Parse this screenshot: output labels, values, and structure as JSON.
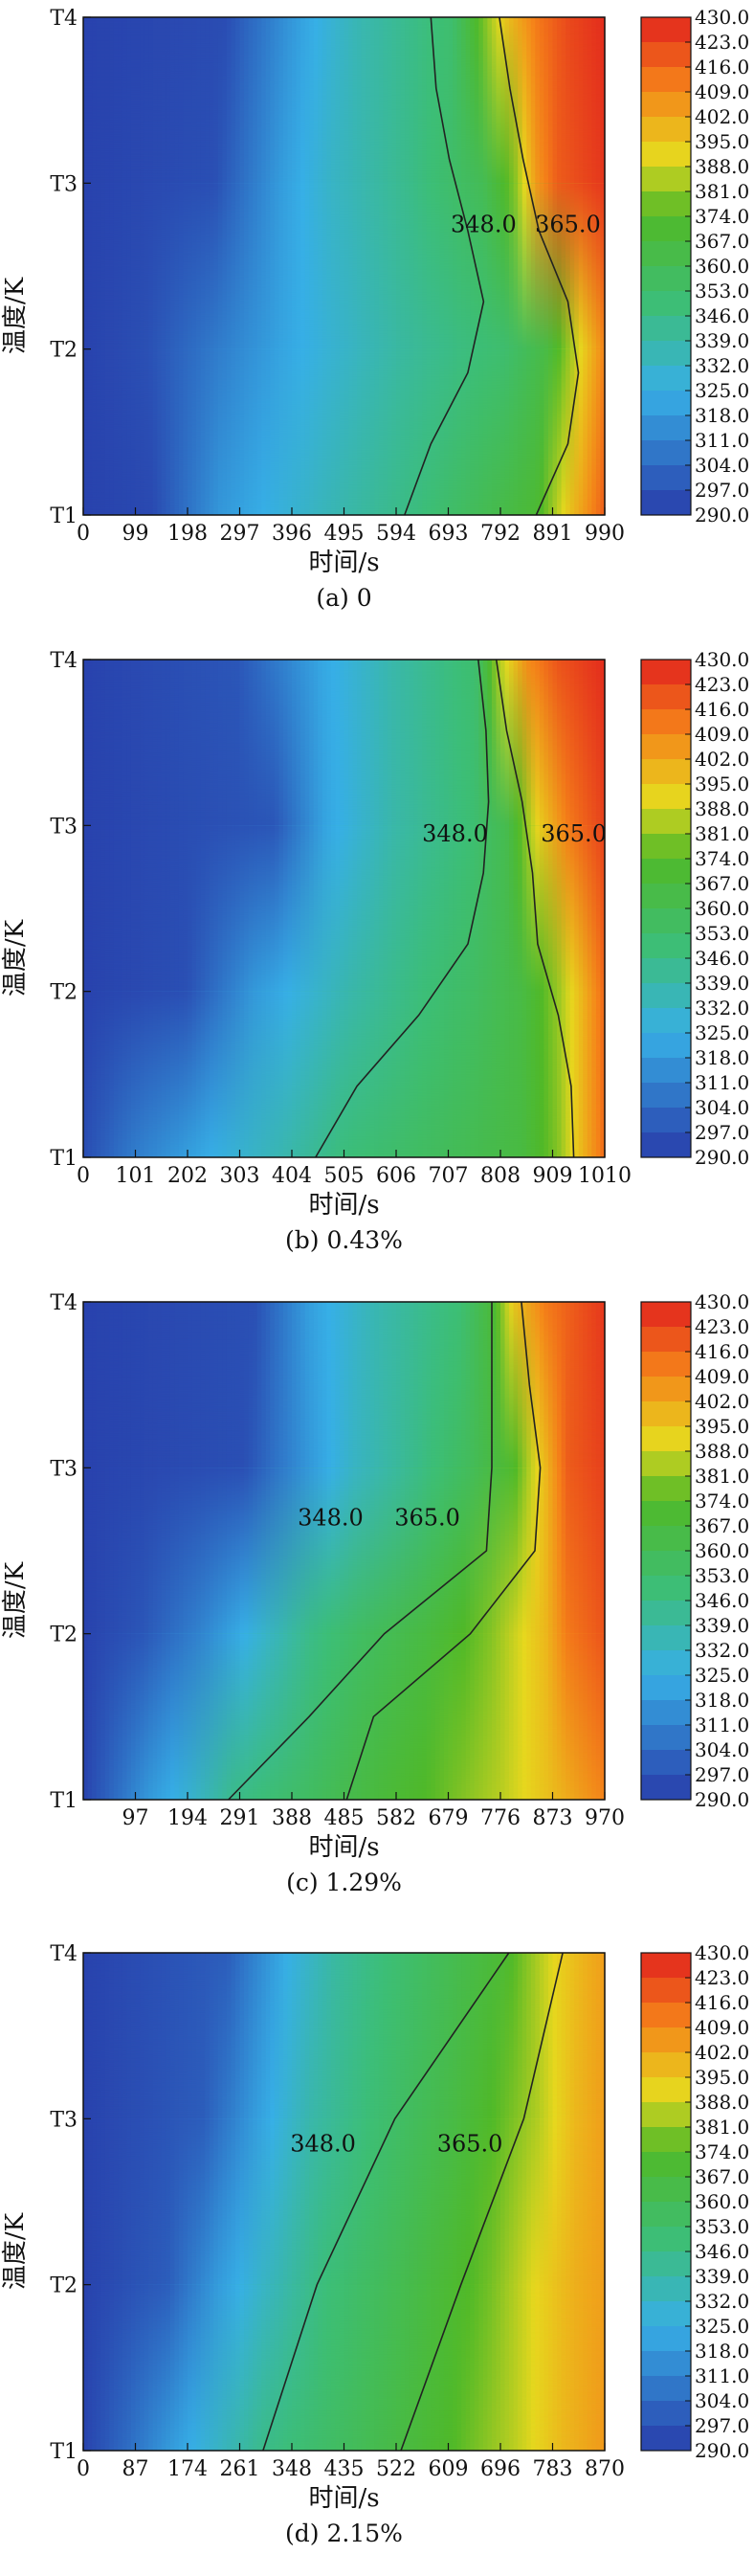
{
  "chart_data": [
    {
      "type": "heatmap",
      "caption": "(a) 0",
      "xlabel": "时间/s",
      "ylabel": "温度/K",
      "x_ticks": [
        0,
        99,
        198,
        297,
        396,
        495,
        594,
        693,
        792,
        891,
        990
      ],
      "xlim": [
        0,
        990
      ],
      "y_categories": [
        "T1",
        "T2",
        "T3",
        "T4"
      ],
      "colorbar_ticks": [
        "430.0",
        "423.0",
        "416.0",
        "409.0",
        "402.0",
        "395.0",
        "388.0",
        "381.0",
        "374.0",
        "367.0",
        "360.0",
        "353.0",
        "346.0",
        "339.0",
        "332.0",
        "325.0",
        "318.0",
        "311.0",
        "304.0",
        "297.0",
        "290.0"
      ],
      "zlim": [
        290,
        430
      ],
      "temperature_rows": [
        {
          "sensor": "T1",
          "x": [
            0,
            130,
            260,
            500,
            640,
            760,
            860,
            930,
            990
          ],
          "values": [
            292,
            294,
            318,
            338,
            348,
            360,
            370,
            398,
            418
          ]
        },
        {
          "sensor": "T2",
          "x": [
            0,
            120,
            260,
            380,
            600,
            700,
            800,
            880,
            930,
            990
          ],
          "values": [
            292,
            296,
            310,
            322,
            340,
            346,
            352,
            365,
            385,
            410
          ]
        },
        {
          "sensor": "T3",
          "x": [
            0,
            250,
            380,
            470,
            620,
            760,
            820,
            860,
            900,
            990
          ],
          "values": [
            292,
            296,
            320,
            332,
            345,
            360,
            380,
            405,
            418,
            426
          ]
        },
        {
          "sensor": "T4",
          "x": [
            0,
            270,
            420,
            520,
            700,
            740,
            800,
            860,
            920,
            990
          ],
          "values": [
            292,
            295,
            322,
            336,
            352,
            370,
            395,
            412,
            422,
            428
          ]
        }
      ],
      "contours": [
        {
          "label": "348.0",
          "x": [
            610,
            660,
            730,
            760,
            730,
            695,
            670,
            660
          ],
          "label_at": [
            760,
            1.75
          ]
        },
        {
          "label": "365.0",
          "x": [
            860,
            920,
            940,
            920,
            865,
            835,
            810,
            790
          ],
          "label_at": [
            920,
            1.75
          ]
        }
      ]
    },
    {
      "type": "heatmap",
      "caption": "(b) 0.43%",
      "xlabel": "时间/s",
      "ylabel": "温度/K",
      "x_ticks": [
        0,
        101,
        202,
        303,
        404,
        505,
        606,
        707,
        808,
        909,
        1010
      ],
      "xlim": [
        0,
        1010
      ],
      "y_categories": [
        "T1",
        "T2",
        "T3",
        "T4"
      ],
      "colorbar_ticks": [
        "430.0",
        "423.0",
        "416.0",
        "409.0",
        "402.0",
        "395.0",
        "388.0",
        "381.0",
        "374.0",
        "367.0",
        "360.0",
        "353.0",
        "346.0",
        "339.0",
        "332.0",
        "325.0",
        "318.0",
        "311.0",
        "304.0",
        "297.0",
        "290.0"
      ],
      "zlim": [
        290,
        430
      ],
      "temperature_rows": [
        {
          "sensor": "T1",
          "x": [
            0,
            100,
            250,
            400,
            500,
            700,
            850,
            920,
            970,
            1010
          ],
          "values": [
            295,
            310,
            325,
            338,
            348,
            358,
            366,
            380,
            400,
            415
          ]
        },
        {
          "sensor": "T2",
          "x": [
            0,
            200,
            330,
            520,
            650,
            760,
            850,
            920,
            970,
            1010
          ],
          "values": [
            292,
            296,
            318,
            338,
            348,
            356,
            365,
            382,
            400,
            416
          ]
        },
        {
          "sensor": "T3",
          "x": [
            0,
            370,
            470,
            600,
            750,
            820,
            880,
            940,
            1010
          ],
          "values": [
            292,
            298,
            322,
            338,
            350,
            362,
            392,
            412,
            424
          ]
        },
        {
          "sensor": "T4",
          "x": [
            0,
            300,
            460,
            600,
            760,
            800,
            860,
            920,
            1010
          ],
          "values": [
            292,
            298,
            322,
            338,
            352,
            382,
            408,
            420,
            428
          ]
        }
      ],
      "contours": [
        {
          "label": "348.0",
          "x": [
            450,
            530,
            650,
            745,
            775,
            785,
            780,
            765
          ],
          "label_at": [
            720,
            1.95
          ]
        },
        {
          "label": "365.0",
          "x": [
            950,
            945,
            920,
            880,
            870,
            850,
            820,
            800
          ],
          "label_at": [
            950,
            1.95
          ]
        }
      ]
    },
    {
      "type": "heatmap",
      "caption": "(c) 1.29%",
      "xlabel": "时间/s",
      "ylabel": "温度/K",
      "x_ticks": [
        97,
        194,
        291,
        388,
        485,
        582,
        679,
        776,
        873,
        970
      ],
      "xlim": [
        0,
        970
      ],
      "y_categories": [
        "T1",
        "T2",
        "T3",
        "T4"
      ],
      "colorbar_ticks": [
        "430.0",
        "423.0",
        "416.0",
        "409.0",
        "402.0",
        "395.0",
        "388.0",
        "381.0",
        "374.0",
        "367.0",
        "360.0",
        "353.0",
        "346.0",
        "339.0",
        "332.0",
        "325.0",
        "318.0",
        "311.0",
        "304.0",
        "297.0",
        "290.0"
      ],
      "zlim": [
        290,
        430
      ],
      "temperature_rows": [
        {
          "sensor": "T1",
          "x": [
            0,
            60,
            120,
            200,
            280,
            400,
            520,
            650,
            780,
            880,
            970
          ],
          "values": [
            292,
            305,
            318,
            330,
            345,
            354,
            365,
            375,
            386,
            398,
            410
          ]
        },
        {
          "sensor": "T2",
          "x": [
            0,
            110,
            220,
            330,
            420,
            520,
            640,
            760,
            860,
            900,
            970
          ],
          "values": [
            292,
            298,
            312,
            330,
            345,
            356,
            366,
            380,
            398,
            412,
            420
          ]
        },
        {
          "sensor": "T3",
          "x": [
            0,
            300,
            420,
            500,
            620,
            720,
            800,
            860,
            900,
            970
          ],
          "values": [
            292,
            296,
            318,
            332,
            345,
            358,
            372,
            398,
            418,
            424
          ]
        },
        {
          "sensor": "T4",
          "x": [
            0,
            320,
            420,
            540,
            700,
            760,
            800,
            860,
            970
          ],
          "values": [
            292,
            296,
            320,
            336,
            350,
            368,
            395,
            412,
            426
          ]
        }
      ],
      "contours": [
        {
          "label": "348.0",
          "x": [
            270,
            420,
            560,
            750,
            760,
            760,
            760
          ],
          "label_at": [
            460,
            1.7
          ]
        },
        {
          "label": "365.0",
          "x": [
            490,
            540,
            720,
            840,
            850,
            830,
            815
          ],
          "label_at": [
            640,
            1.7
          ]
        }
      ]
    },
    {
      "type": "heatmap",
      "caption": "(d) 2.15%",
      "xlabel": "时间/s",
      "ylabel": "温度/K",
      "x_ticks": [
        0,
        87,
        174,
        261,
        348,
        435,
        522,
        609,
        696,
        783,
        870
      ],
      "xlim": [
        0,
        870
      ],
      "y_categories": [
        "T1",
        "T2",
        "T3",
        "T4"
      ],
      "colorbar_ticks": [
        "430.0",
        "423.0",
        "416.0",
        "409.0",
        "402.0",
        "395.0",
        "388.0",
        "381.0",
        "374.0",
        "367.0",
        "360.0",
        "353.0",
        "346.0",
        "339.0",
        "332.0",
        "325.0",
        "318.0",
        "311.0",
        "304.0",
        "297.0",
        "290.0"
      ],
      "zlim": [
        290,
        430
      ],
      "temperature_rows": [
        {
          "sensor": "T1",
          "x": [
            0,
            80,
            140,
            200,
            300,
            450,
            600,
            720,
            800,
            870
          ],
          "values": [
            292,
            306,
            318,
            328,
            345,
            358,
            372,
            386,
            398,
            405
          ]
        },
        {
          "sensor": "T2",
          "x": [
            0,
            140,
            220,
            300,
            400,
            540,
            680,
            760,
            820,
            870
          ],
          "values": [
            292,
            300,
            318,
            332,
            348,
            362,
            378,
            392,
            400,
            404
          ]
        },
        {
          "sensor": "T3",
          "x": [
            0,
            200,
            290,
            380,
            500,
            620,
            760,
            820,
            870
          ],
          "values": [
            292,
            300,
            320,
            338,
            352,
            365,
            385,
            398,
            404
          ]
        },
        {
          "sensor": "T4",
          "x": [
            0,
            240,
            340,
            420,
            560,
            700,
            790,
            840,
            870
          ],
          "values": [
            292,
            300,
            325,
            340,
            355,
            370,
            392,
            400,
            404
          ]
        }
      ],
      "contours": [
        {
          "label": "348.0",
          "x": [
            300,
            390,
            520,
            710
          ],
          "label_at": [
            400,
            1.85
          ]
        },
        {
          "label": "365.0",
          "x": [
            530,
            630,
            735,
            800
          ],
          "label_at": [
            645,
            1.85
          ]
        }
      ]
    }
  ]
}
